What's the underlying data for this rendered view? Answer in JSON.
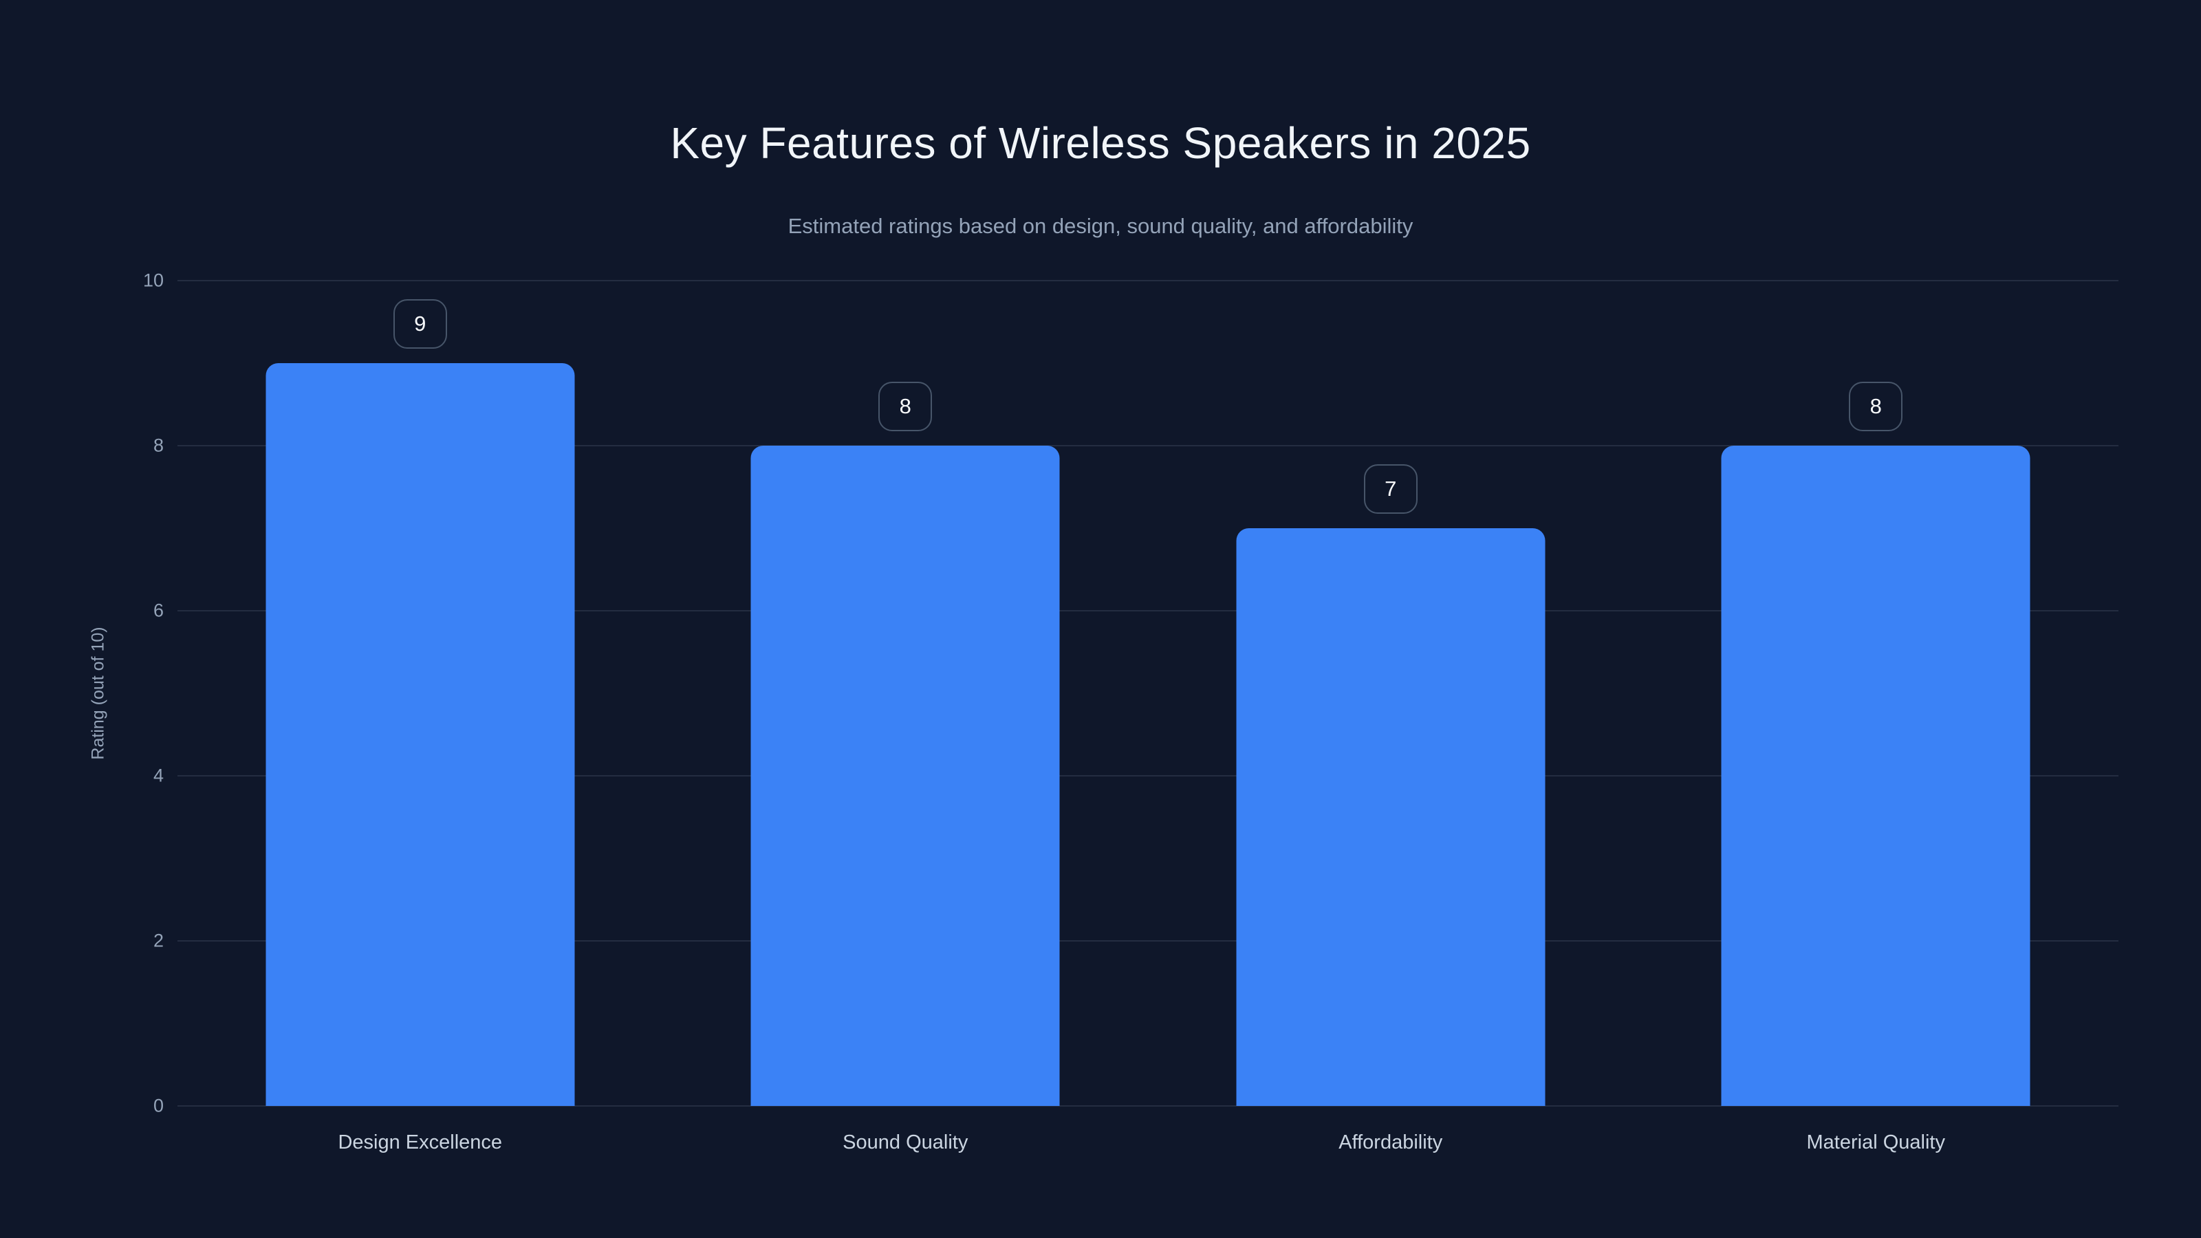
{
  "chart_data": {
    "type": "bar",
    "title": "Key Features of Wireless Speakers in 2025",
    "subtitle": "Estimated ratings based on design, sound quality, and affordability",
    "ylabel": "Rating (out of 10)",
    "xlabel": "",
    "categories": [
      "Design Excellence",
      "Sound Quality",
      "Affordability",
      "Material Quality"
    ],
    "values": [
      9,
      8,
      7,
      8
    ],
    "value_labels": [
      "9",
      "8",
      "7",
      "8"
    ],
    "ylim": [
      0,
      10
    ],
    "yticks": [
      0,
      2,
      4,
      6,
      8,
      10
    ],
    "grid": "horizontal-only",
    "legend": "none",
    "colors": {
      "background": "#0f172a",
      "bar": "#3b82f6",
      "grid": "rgba(148,163,184,0.16)",
      "title": "#f1f5f9",
      "subtitle": "#94a3b8",
      "tick_label": "#94a3b8",
      "category_label": "#cbd5e1",
      "badge_border": "#475569",
      "badge_text": "#f8fafc"
    }
  }
}
